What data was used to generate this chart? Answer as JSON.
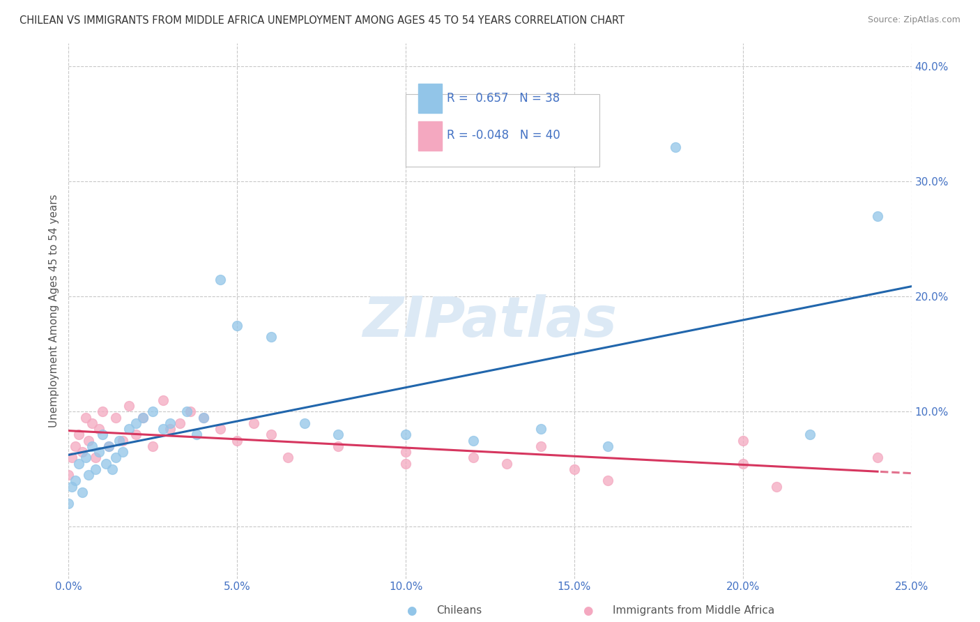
{
  "title": "CHILEAN VS IMMIGRANTS FROM MIDDLE AFRICA UNEMPLOYMENT AMONG AGES 45 TO 54 YEARS CORRELATION CHART",
  "source": "Source: ZipAtlas.com",
  "ylabel": "Unemployment Among Ages 45 to 54 years",
  "xlim": [
    0.0,
    0.25
  ],
  "ylim": [
    -0.045,
    0.42
  ],
  "legend_labels": [
    "Chileans",
    "Immigrants from Middle Africa"
  ],
  "r_chilean": 0.657,
  "n_chilean": 38,
  "r_immigrant": -0.048,
  "n_immigrant": 40,
  "blue_scatter_color": "#92c5e8",
  "pink_scatter_color": "#f4a8c0",
  "blue_line_color": "#2166ac",
  "pink_line_color": "#d6365f",
  "axis_label_color": "#4472C4",
  "watermark_color": "#dce9f5",
  "grid_color": "#c8c8c8",
  "chilean_x": [
    0.0,
    0.001,
    0.002,
    0.003,
    0.004,
    0.005,
    0.006,
    0.007,
    0.008,
    0.009,
    0.01,
    0.011,
    0.012,
    0.013,
    0.014,
    0.015,
    0.016,
    0.018,
    0.02,
    0.022,
    0.025,
    0.028,
    0.03,
    0.035,
    0.038,
    0.04,
    0.045,
    0.05,
    0.06,
    0.07,
    0.08,
    0.1,
    0.12,
    0.14,
    0.16,
    0.18,
    0.22,
    0.24
  ],
  "chilean_y": [
    0.02,
    0.035,
    0.04,
    0.055,
    0.03,
    0.06,
    0.045,
    0.07,
    0.05,
    0.065,
    0.08,
    0.055,
    0.07,
    0.05,
    0.06,
    0.075,
    0.065,
    0.085,
    0.09,
    0.095,
    0.1,
    0.085,
    0.09,
    0.1,
    0.08,
    0.095,
    0.215,
    0.175,
    0.165,
    0.09,
    0.08,
    0.08,
    0.075,
    0.085,
    0.07,
    0.33,
    0.08,
    0.27
  ],
  "immigrant_x": [
    0.0,
    0.001,
    0.002,
    0.003,
    0.004,
    0.005,
    0.006,
    0.007,
    0.008,
    0.009,
    0.01,
    0.012,
    0.014,
    0.016,
    0.018,
    0.02,
    0.022,
    0.025,
    0.028,
    0.03,
    0.033,
    0.036,
    0.04,
    0.045,
    0.05,
    0.055,
    0.06,
    0.065,
    0.08,
    0.1,
    0.1,
    0.12,
    0.13,
    0.14,
    0.15,
    0.16,
    0.2,
    0.2,
    0.21,
    0.24
  ],
  "immigrant_y": [
    0.045,
    0.06,
    0.07,
    0.08,
    0.065,
    0.095,
    0.075,
    0.09,
    0.06,
    0.085,
    0.1,
    0.07,
    0.095,
    0.075,
    0.105,
    0.08,
    0.095,
    0.07,
    0.11,
    0.085,
    0.09,
    0.1,
    0.095,
    0.085,
    0.075,
    0.09,
    0.08,
    0.06,
    0.07,
    0.055,
    0.065,
    0.06,
    0.055,
    0.07,
    0.05,
    0.04,
    0.055,
    0.075,
    0.035,
    0.06
  ],
  "xtick_vals": [
    0.0,
    0.05,
    0.1,
    0.15,
    0.2,
    0.25
  ],
  "ytick_vals": [
    0.0,
    0.1,
    0.2,
    0.3,
    0.4
  ],
  "ytick_right_vals": [
    0.0,
    0.1,
    0.2,
    0.3,
    0.4
  ],
  "ytick_right_labels": [
    "",
    "10.0%",
    "20.0%",
    "30.0%",
    "40.0%"
  ]
}
